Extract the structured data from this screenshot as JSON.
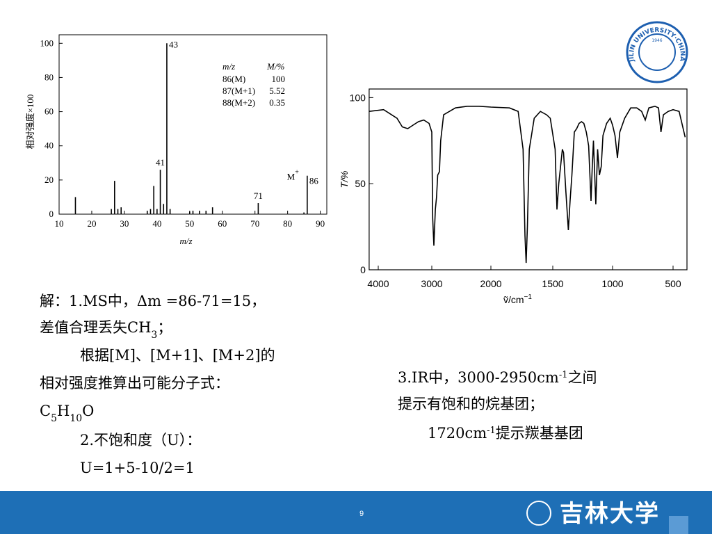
{
  "chart_data": [
    {
      "type": "bar",
      "x_label": "m/z",
      "y_label": "相对强度×100",
      "x": [
        15,
        26,
        27,
        28,
        29,
        37,
        38,
        39,
        40,
        41,
        42,
        43,
        44,
        50,
        51,
        53,
        55,
        57,
        71,
        85,
        86
      ],
      "values": [
        10,
        3,
        19.5,
        3,
        4,
        2,
        3,
        16.5,
        3,
        26,
        6,
        100,
        3,
        1.5,
        2,
        2,
        2,
        4,
        6.5,
        1,
        22.5
      ],
      "peak_labels": [
        null,
        null,
        null,
        null,
        null,
        null,
        null,
        null,
        null,
        "41",
        null,
        "43",
        null,
        null,
        null,
        null,
        null,
        null,
        "71",
        null,
        "86"
      ],
      "ion_label": {
        "text": "M",
        "sup": "+"
      },
      "color": "#000000",
      "xlim": [
        10,
        92
      ],
      "ylim": [
        0,
        105
      ],
      "xticks": [
        10,
        20,
        30,
        40,
        50,
        60,
        70,
        80,
        90
      ],
      "yticks": [
        0,
        20,
        40,
        60,
        80,
        100
      ],
      "table": {
        "header": [
          "m/z",
          "M/%"
        ],
        "rows": [
          [
            "86(M)",
            "100"
          ],
          [
            "87(M+1)",
            "5.52"
          ],
          [
            "88(M+2)",
            "0.35"
          ]
        ]
      }
    },
    {
      "type": "line",
      "y_label": "T/%",
      "x_label": {
        "base": "ṽ/cm",
        "sup": "−1"
      },
      "x": [
        4170,
        3900,
        3650,
        3550,
        3450,
        3350,
        3250,
        3150,
        3050,
        3000,
        2985,
        2965,
        2940,
        2920,
        2900,
        2870,
        2850,
        2800,
        2600,
        2400,
        2200,
        2000,
        1850,
        1780,
        1740,
        1725,
        1715,
        1705,
        1690,
        1650,
        1600,
        1550,
        1520,
        1480,
        1465,
        1450,
        1420,
        1410,
        1390,
        1370,
        1355,
        1340,
        1320,
        1300,
        1280,
        1260,
        1240,
        1220,
        1200,
        1180,
        1170,
        1160,
        1140,
        1125,
        1110,
        1095,
        1080,
        1050,
        1020,
        1000,
        980,
        960,
        940,
        900,
        850,
        800,
        760,
        730,
        700,
        650,
        620,
        600,
        580,
        540,
        500,
        450,
        400
      ],
      "values": [
        92,
        93,
        88,
        83,
        82,
        84,
        86,
        87,
        85,
        80,
        30,
        14,
        35,
        42,
        55,
        57,
        75,
        90,
        94,
        95,
        95,
        94.5,
        94,
        92,
        70,
        20,
        4,
        25,
        70,
        88,
        92,
        90,
        88,
        70,
        35,
        50,
        70,
        68,
        45,
        23,
        40,
        55,
        80,
        82,
        85,
        86,
        85,
        80,
        72,
        40,
        60,
        75,
        38,
        70,
        55,
        60,
        78,
        85,
        88,
        84,
        78,
        65,
        80,
        88,
        94,
        94,
        92,
        87,
        94,
        95,
        94,
        80,
        90,
        92,
        93,
        92,
        77
      ],
      "color": "#000000",
      "xlim": [
        4170,
        385
      ],
      "ylim": [
        0,
        105
      ],
      "xticks": [
        4000,
        3000,
        2000,
        1500,
        1000,
        500
      ],
      "yticks": [
        0,
        50,
        100
      ]
    }
  ],
  "solution": {
    "lines": [
      [
        {
          "text": "解：1.MS中，Δm =86-71=15，"
        }
      ],
      [
        {
          "text": "差值合理丢失CH"
        },
        {
          "text": "3",
          "sub": true
        },
        {
          "text": "；"
        }
      ],
      [
        {
          "text": "根据[M]、[M+1]、[M+2]的"
        }
      ],
      [
        {
          "text": "相对强度推算出可能分子式："
        }
      ],
      [
        {
          "text": "C"
        },
        {
          "text": "5",
          "sub": true
        },
        {
          "text": "H"
        },
        {
          "text": "10",
          "sub": true
        },
        {
          "text": "O"
        }
      ],
      [
        {
          "text": "2.不饱和度（U）："
        }
      ],
      [
        {
          "text": "U=1+5-10/2=1"
        }
      ]
    ]
  },
  "ir_notes": {
    "lines": [
      [
        {
          "text": "3.IR中，3000-2950cm"
        },
        {
          "text": "-1",
          "sup": true
        },
        {
          "text": "之间"
        }
      ],
      [
        {
          "text": "提示有饱和的烷基团；"
        }
      ],
      [
        {
          "text": "1720cm"
        },
        {
          "text": "-1",
          "sup": true
        },
        {
          "text": "提示羰基基团"
        }
      ]
    ]
  },
  "seal": {
    "text": "JILIN UNIVERSITY·CHINA",
    "year": "1946"
  },
  "footer": {
    "page": "9",
    "logo": "吉林大学"
  }
}
